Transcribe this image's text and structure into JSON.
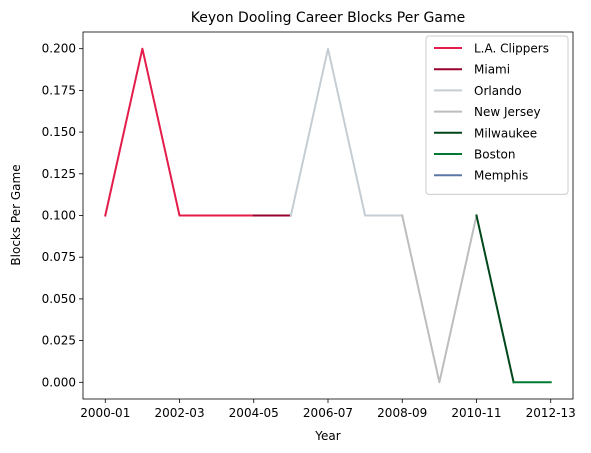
{
  "chart_data": {
    "type": "line",
    "title": "Keyon Dooling Career Blocks Per Game",
    "xlabel": "Year",
    "ylabel": "Blocks Per Game",
    "x_categories": [
      "2000-01",
      "2001-02",
      "2002-03",
      "2003-04",
      "2004-05",
      "2005-06",
      "2006-07",
      "2007-08",
      "2008-09",
      "2009-10",
      "2010-11",
      "2011-12",
      "2012-13"
    ],
    "x_tick_labels": [
      "2000-01",
      "2002-03",
      "2004-05",
      "2006-07",
      "2008-09",
      "2010-11",
      "2012-13"
    ],
    "x_tick_indices": [
      0,
      2,
      4,
      6,
      8,
      10,
      12
    ],
    "ylim": [
      -0.01,
      0.21
    ],
    "y_ticks": [
      0.0,
      0.025,
      0.05,
      0.075,
      0.1,
      0.125,
      0.15,
      0.175,
      0.2
    ],
    "y_tick_labels": [
      "0.000",
      "0.025",
      "0.050",
      "0.075",
      "0.100",
      "0.125",
      "0.150",
      "0.175",
      "0.200"
    ],
    "grid": false,
    "legend_position": "top-right",
    "series": [
      {
        "name": "L.A. Clippers",
        "color": "#e31c4a",
        "x": [
          "2000-01",
          "2001-02",
          "2002-03",
          "2003-04",
          "2004-05"
        ],
        "y": [
          0.1,
          0.2,
          0.1,
          0.1,
          0.1
        ]
      },
      {
        "name": "Miami",
        "color": "#98002e",
        "x": [
          "2004-05",
          "2005-06"
        ],
        "y": [
          0.1,
          0.1
        ]
      },
      {
        "name": "Orlando",
        "color": "#c4ced4",
        "x": [
          "2005-06",
          "2006-07",
          "2007-08",
          "2008-09"
        ],
        "y": [
          0.1,
          0.2,
          0.1,
          0.1
        ]
      },
      {
        "name": "New Jersey",
        "color": "#bdbdbd",
        "x": [
          "2008-09",
          "2009-10",
          "2010-11"
        ],
        "y": [
          0.1,
          0.0,
          0.1
        ]
      },
      {
        "name": "Milwaukee",
        "color": "#00471b",
        "x": [
          "2010-11",
          "2011-12"
        ],
        "y": [
          0.1,
          0.0
        ]
      },
      {
        "name": "Boston",
        "color": "#007a33",
        "x": [
          "2011-12",
          "2012-13"
        ],
        "y": [
          0.0,
          0.0
        ]
      },
      {
        "name": "Memphis",
        "color": "#5d76a9",
        "x": [
          "2012-13"
        ],
        "y": [
          0.0
        ]
      }
    ]
  }
}
